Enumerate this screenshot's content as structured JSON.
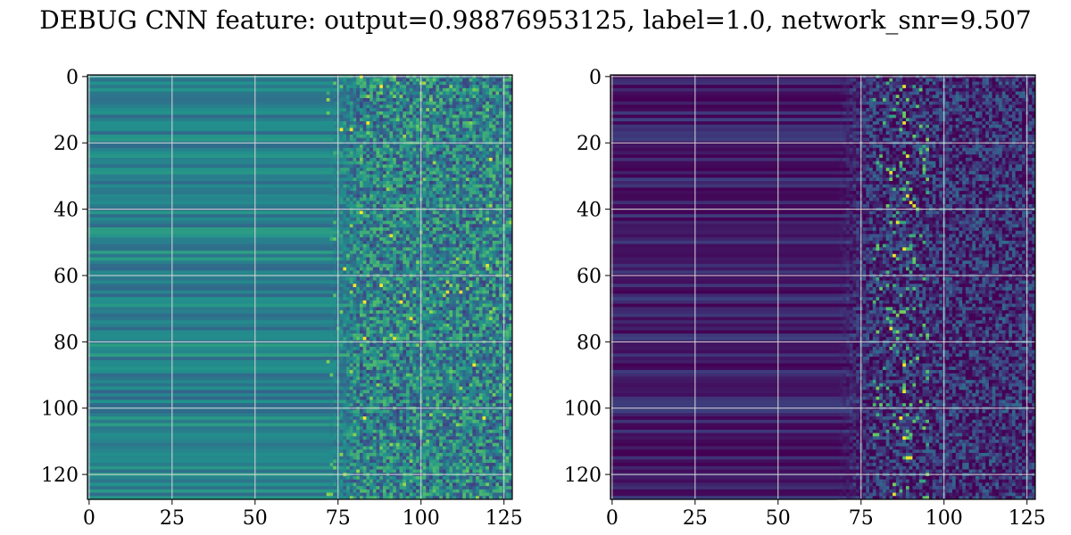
{
  "figure": {
    "title": "DEBUG CNN feature: output=0.98876953125, label=1.0, network_snr=9.507"
  },
  "chart_data": [
    {
      "type": "heatmap",
      "title": "",
      "xlabel": "",
      "ylabel": "",
      "xlim": [
        -0.5,
        127.5
      ],
      "ylim": [
        127.5,
        -0.5
      ],
      "rows": 128,
      "cols": 128,
      "xticks": [
        0,
        25,
        50,
        75,
        100,
        125
      ],
      "yticks": [
        0,
        20,
        40,
        60,
        80,
        100,
        120
      ],
      "grid": true,
      "colormap": "viridis",
      "base_level": 0.42,
      "bright_cells": [
        [
          0,
          82
        ],
        [
          3,
          88
        ],
        [
          16,
          76
        ],
        [
          16,
          79
        ],
        [
          14,
          84
        ],
        [
          25,
          121
        ],
        [
          41,
          82
        ],
        [
          48,
          91
        ],
        [
          58,
          77
        ],
        [
          63,
          80
        ],
        [
          63,
          88
        ],
        [
          65,
          108
        ],
        [
          65,
          112
        ],
        [
          68,
          94
        ],
        [
          68,
          83
        ],
        [
          79,
          83
        ],
        [
          79,
          92
        ],
        [
          87,
          116
        ],
        [
          103,
          83
        ],
        [
          103,
          119
        ],
        [
          73,
          97
        ],
        [
          57,
          120
        ]
      ]
    },
    {
      "type": "heatmap",
      "title": "",
      "xlabel": "",
      "ylabel": "",
      "xlim": [
        -0.5,
        127.5
      ],
      "ylim": [
        127.5,
        -0.5
      ],
      "rows": 128,
      "cols": 128,
      "xticks": [
        0,
        25,
        50,
        75,
        100,
        125
      ],
      "yticks": [
        0,
        20,
        40,
        60,
        80,
        100,
        120
      ],
      "grid": true,
      "colormap": "viridis",
      "base_level": 0.12,
      "bright_cells": [
        [
          3,
          88
        ],
        [
          14,
          88
        ],
        [
          24,
          89
        ],
        [
          29,
          84
        ],
        [
          36,
          89
        ],
        [
          38,
          90
        ],
        [
          39,
          91
        ],
        [
          44,
          86
        ],
        [
          52,
          88
        ],
        [
          54,
          85
        ],
        [
          76,
          84
        ],
        [
          87,
          88
        ],
        [
          95,
          88
        ],
        [
          103,
          87
        ],
        [
          109,
          88
        ],
        [
          115,
          89
        ],
        [
          115,
          90
        ],
        [
          126,
          85
        ]
      ]
    }
  ]
}
